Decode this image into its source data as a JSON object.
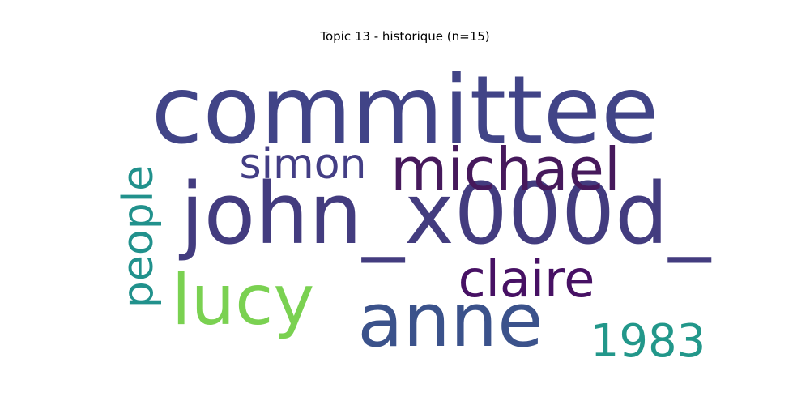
{
  "title": "Topic 13 - historique (n=15)",
  "words": [
    {
      "text": "committee",
      "color": "#414487"
    },
    {
      "text": "john_x000d_",
      "color": "#433c7f"
    },
    {
      "text": "anne",
      "color": "#3b528b"
    },
    {
      "text": "michael",
      "color": "#46195c"
    },
    {
      "text": "simon",
      "color": "#433e85"
    },
    {
      "text": "lucy",
      "color": "#7ad151"
    },
    {
      "text": "claire",
      "color": "#471164"
    },
    {
      "text": "people",
      "color": "#21918c"
    },
    {
      "text": "1983",
      "color": "#22978a"
    }
  ]
}
